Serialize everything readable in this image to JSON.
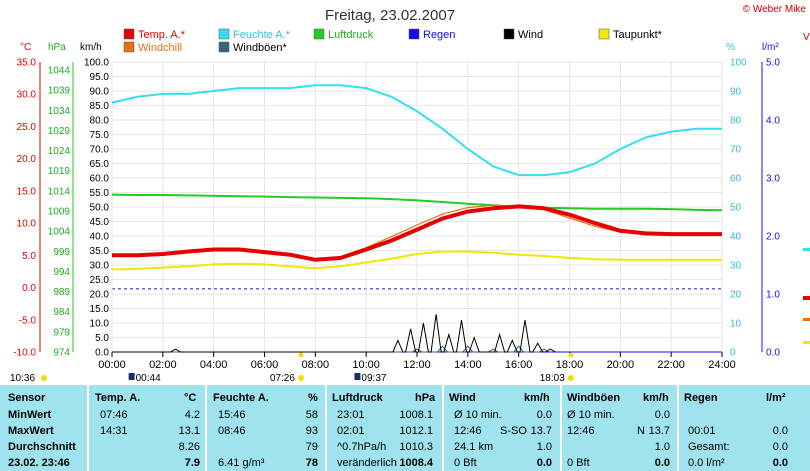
{
  "header": {
    "title": "Freitag, 23.02.2007",
    "copyright": "© Weber Mike"
  },
  "colors": {
    "temp": "#e60000",
    "humidity": "#33e0f0",
    "pressure": "#22cc22",
    "rain": "#1010ee",
    "wind": "#000000",
    "dewpoint": "#f0e800",
    "windchill": "#e87010",
    "gust": "#336677",
    "stats_bg": "#9fe3ef"
  },
  "legend": [
    {
      "key": "temp",
      "label": "Temp. A.*",
      "color": "#e60000"
    },
    {
      "key": "humidity",
      "label": "Feuchte A.*",
      "color": "#33e0f0"
    },
    {
      "key": "pressure",
      "label": "Luftdruck",
      "color": "#22cc22"
    },
    {
      "key": "rain",
      "label": "Regen",
      "color": "#1010ee"
    },
    {
      "key": "wind",
      "label": "Wind",
      "color": "#000000"
    },
    {
      "key": "dewpoint",
      "label": "Taupunkt*",
      "color": "#f0e800"
    },
    {
      "key": "windchill",
      "label": "Windchill",
      "color": "#e87010"
    },
    {
      "key": "gust",
      "label": "Windböen*",
      "color": "#336677"
    }
  ],
  "axes": {
    "temp_unit": "°C",
    "pressure_unit": "hPa",
    "wind_unit": "km/h",
    "humidity_unit": "%",
    "rain_unit": "l/m²",
    "temp_ticks": [
      "35.0",
      "30.0",
      "25.0",
      "20.0",
      "15.0",
      "10.0",
      "5.0",
      "0.0",
      "-5.0",
      "-10.0"
    ],
    "pressure_ticks": [
      "1044",
      "1039",
      "1034",
      "1029",
      "1024",
      "1019",
      "1014",
      "1009",
      "1004",
      "999",
      "994",
      "989",
      "984",
      "979",
      "974"
    ],
    "wind_ticks": [
      "100.0",
      "95.0",
      "90.0",
      "85.0",
      "80.0",
      "75.0",
      "70.0",
      "65.0",
      "60.0",
      "55.0",
      "50.0",
      "45.0",
      "40.0",
      "35.0",
      "30.0",
      "25.0",
      "20.0",
      "15.0",
      "10.0",
      "5.0",
      "0.0"
    ],
    "humidity_ticks": [
      "100",
      "90",
      "80",
      "70",
      "60",
      "50",
      "40",
      "30",
      "20",
      "10",
      "0"
    ],
    "rain_ticks": [
      "5.0",
      "4.0",
      "3.0",
      "2.0",
      "1.0",
      "0.0"
    ],
    "time_ticks": [
      "00:00",
      "02:00",
      "04:00",
      "06:00",
      "08:00",
      "10:00",
      "12:00",
      "14:00",
      "16:00",
      "18:00",
      "20:00",
      "22:00",
      "24:00"
    ]
  },
  "sun": {
    "sunrise_moon": "10:36",
    "moonset": "00:44",
    "sunrise": "07:26",
    "moonrise": "09:37",
    "sunset": "18:03"
  },
  "chart_data": {
    "type": "line",
    "title": "Freitag, 23.02.2007",
    "x_range": [
      "00:00",
      "24:00"
    ],
    "x": [
      "00:00",
      "01:00",
      "02:00",
      "03:00",
      "04:00",
      "05:00",
      "06:00",
      "07:00",
      "08:00",
      "09:00",
      "10:00",
      "11:00",
      "12:00",
      "13:00",
      "14:00",
      "15:00",
      "16:00",
      "17:00",
      "18:00",
      "19:00",
      "20:00",
      "21:00",
      "22:00",
      "23:00",
      "24:00"
    ],
    "ylim_temp": [
      -10,
      35
    ],
    "ylim_pressure": [
      974,
      1044
    ],
    "ylim_wind": [
      0,
      100
    ],
    "ylim_humidity": [
      0,
      100
    ],
    "ylim_rain": [
      0,
      5
    ],
    "series": [
      {
        "name": "Temp. A.*",
        "axis": "temp",
        "values": [
          5.0,
          5.0,
          5.2,
          5.6,
          5.9,
          5.9,
          5.5,
          5.1,
          4.3,
          4.6,
          5.9,
          7.3,
          9.0,
          10.7,
          11.8,
          12.3,
          12.6,
          12.3,
          11.3,
          10.0,
          8.8,
          8.4,
          8.3,
          8.3,
          8.3
        ]
      },
      {
        "name": "Feuchte A.*",
        "axis": "humidity",
        "values": [
          86,
          88,
          89,
          89,
          90,
          91,
          91,
          91,
          92,
          92,
          91,
          88,
          83,
          77,
          70,
          64,
          61,
          61,
          62,
          65,
          70,
          74,
          76,
          77,
          77
        ]
      },
      {
        "name": "Luftdruck",
        "axis": "pressure",
        "values": [
          1012.0,
          1011.9,
          1011.9,
          1011.8,
          1011.7,
          1011.6,
          1011.5,
          1011.4,
          1011.3,
          1011.2,
          1011.1,
          1010.9,
          1010.6,
          1010.2,
          1009.8,
          1009.4,
          1009.0,
          1008.8,
          1008.7,
          1008.6,
          1008.6,
          1008.6,
          1008.5,
          1008.3,
          1008.2
        ]
      },
      {
        "name": "Taupunkt*",
        "axis": "temp",
        "values": [
          2.8,
          2.9,
          3.1,
          3.3,
          3.6,
          3.7,
          3.6,
          3.3,
          3.0,
          3.3,
          3.9,
          4.5,
          5.2,
          5.6,
          5.6,
          5.4,
          5.1,
          4.9,
          4.6,
          4.4,
          4.3,
          4.3,
          4.3,
          4.3,
          4.3
        ]
      },
      {
        "name": "Windchill",
        "axis": "temp",
        "values": [
          5.0,
          5.0,
          5.2,
          5.6,
          5.9,
          5.9,
          5.5,
          5.1,
          4.3,
          4.8,
          6.2,
          7.9,
          9.7,
          11.4,
          12.4,
          12.8,
          12.6,
          12.1,
          10.8,
          9.5,
          8.6,
          8.4,
          8.3,
          8.3,
          8.3
        ]
      },
      {
        "name": "Wind",
        "axis": "wind",
        "x": [
          "02:30",
          "11:15",
          "11:45",
          "12:15",
          "12:45",
          "13:15",
          "13:45",
          "14:15",
          "15:15",
          "15:45",
          "16:15",
          "16:45",
          "17:15"
        ],
        "values": [
          1,
          4,
          8,
          10,
          13,
          6,
          11,
          5,
          6,
          4,
          11,
          3,
          1
        ]
      },
      {
        "name": "Windböen*",
        "axis": "wind",
        "x": [
          "12:00",
          "13:00",
          "14:00",
          "15:00",
          "16:00",
          "17:00"
        ],
        "values": [
          1,
          2,
          2,
          1,
          2,
          1
        ]
      },
      {
        "name": "Regen",
        "axis": "rain",
        "values": [
          0,
          0,
          0,
          0,
          0,
          0,
          0,
          0,
          0,
          0,
          0,
          0,
          0,
          0,
          0,
          0,
          0,
          0,
          0,
          0,
          0,
          0,
          0,
          0,
          0
        ]
      }
    ]
  },
  "stats": {
    "headers": {
      "sensor": "Sensor",
      "temp": "Temp. A.",
      "temp_unit": "°C",
      "hum": "Feuchte A.",
      "hum_unit": "%",
      "press": "Luftdruck",
      "press_unit": "hPa",
      "wind": "Wind",
      "wind_unit": "km/h",
      "gust": "Windböen",
      "gust_unit": "km/h",
      "rain": "Regen",
      "rain_unit": "l/m²"
    },
    "rows": [
      {
        "label": "MinWert",
        "temp_time": "07:46",
        "temp_val": "4.2",
        "hum_time": "15:46",
        "hum_val": "58",
        "press_time": "23:01",
        "press_val": "1008.1",
        "wind_a": "Ø 10 min.",
        "wind_b": "",
        "wind_val": "0.0",
        "gust_a": "Ø 10 min.",
        "gust_b": "",
        "gust_val": "0.0",
        "rain_a": "",
        "rain_val": ""
      },
      {
        "label": "MaxWert",
        "temp_time": "14:31",
        "temp_val": "13.1",
        "hum_time": "08:46",
        "hum_val": "93",
        "press_time": "02:01",
        "press_val": "1012.1",
        "wind_a": "12:46",
        "wind_b": "S-SO",
        "wind_val": "13.7",
        "gust_a": "12:46",
        "gust_b": "N",
        "gust_val": "13.7",
        "rain_a": "00:01",
        "rain_val": "0.0"
      },
      {
        "label": "Durchschnitt",
        "temp_time": "",
        "temp_val": "8.26",
        "hum_time": "",
        "hum_val": "79",
        "press_time": "^0.7hPa/h",
        "press_val": "1010.3",
        "wind_a": "24.1 km",
        "wind_b": "",
        "wind_val": "1.0",
        "gust_a": "",
        "gust_b": "",
        "gust_val": "1.0",
        "rain_a": "Gesamt:",
        "rain_val": "0.0"
      },
      {
        "label": "23.02. 23:46",
        "temp_time": "",
        "temp_val": "7.9",
        "hum_time": "6.41 g/m³",
        "hum_val": "78",
        "press_time": "veränderlich",
        "press_val": "1008.4",
        "wind_a": "0 Bft",
        "wind_b": "",
        "wind_val": "0.0",
        "gust_a": "0 Bft",
        "gust_b": "",
        "gust_val": "0.0",
        "rain_a": "0.0 l/m²",
        "rain_val": "0.0"
      }
    ]
  }
}
